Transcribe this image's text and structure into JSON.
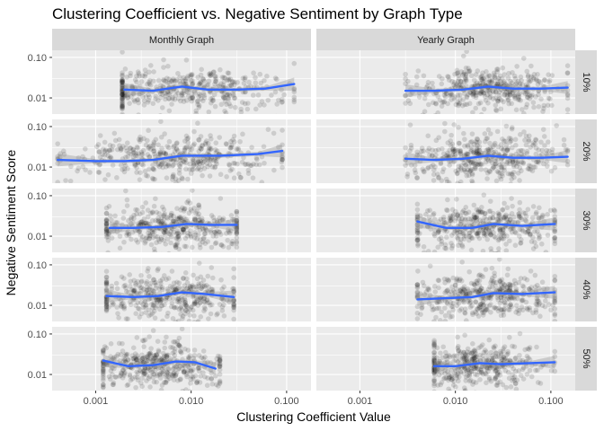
{
  "chart_data": {
    "type": "scatter",
    "title": "Clustering Coefficient vs. Negative Sentiment by Graph Type",
    "xlabel": "Clustering Coefficient Value",
    "ylabel": "Negative Sentiment Score",
    "x_scale": "log10",
    "y_scale": "log10",
    "xlim": [
      0.00035,
      0.18
    ],
    "ylim": [
      0.004,
      0.15
    ],
    "x_ticks": [
      0.001,
      0.01,
      0.1
    ],
    "x_tick_labels": [
      "0.001",
      "0.010",
      "0.100"
    ],
    "y_ticks": [
      0.01,
      0.1
    ],
    "y_tick_labels": [
      "0.01",
      "0.10"
    ],
    "grid": true,
    "columns": [
      "Monthly Graph",
      "Yearly Graph"
    ],
    "rows": [
      "10%",
      "20%",
      "30%",
      "40%",
      "50%"
    ],
    "colors": {
      "panel_bg": "#ebebeb",
      "grid": "#ffffff",
      "strip_bg": "#d9d9d9",
      "points": "#000000",
      "smooth": "#3366ff",
      "ribbon": "#999999"
    },
    "panels": [
      {
        "column": "Monthly Graph",
        "row": "10%",
        "cloud": {
          "x_center": 0.0085,
          "x_spread": 0.55,
          "x_min": 0.0019,
          "x_max": 0.12,
          "y_center": 0.016,
          "y_spread": 0.28
        },
        "smooth": {
          "x": [
            0.002,
            0.004,
            0.008,
            0.015,
            0.03,
            0.06,
            0.12
          ],
          "y": [
            0.016,
            0.015,
            0.019,
            0.016,
            0.016,
            0.017,
            0.022
          ]
        }
      },
      {
        "column": "Yearly Graph",
        "row": "10%",
        "cloud": {
          "x_center": 0.022,
          "x_spread": 0.4,
          "x_min": 0.003,
          "x_max": 0.15,
          "y_center": 0.017,
          "y_spread": 0.28
        },
        "smooth": {
          "x": [
            0.003,
            0.006,
            0.012,
            0.022,
            0.04,
            0.08,
            0.15
          ],
          "y": [
            0.015,
            0.015,
            0.016,
            0.019,
            0.017,
            0.017,
            0.018
          ]
        }
      },
      {
        "column": "Monthly Graph",
        "row": "20%",
        "cloud": {
          "x_center": 0.0075,
          "x_spread": 0.55,
          "x_min": 0.0004,
          "x_max": 0.09,
          "y_center": 0.017,
          "y_spread": 0.3
        },
        "smooth": {
          "x": [
            0.0004,
            0.001,
            0.002,
            0.004,
            0.008,
            0.02,
            0.05,
            0.09
          ],
          "y": [
            0.015,
            0.014,
            0.014,
            0.015,
            0.019,
            0.019,
            0.021,
            0.025
          ]
        }
      },
      {
        "column": "Yearly Graph",
        "row": "20%",
        "cloud": {
          "x_center": 0.022,
          "x_spread": 0.4,
          "x_min": 0.003,
          "x_max": 0.15,
          "y_center": 0.018,
          "y_spread": 0.3
        },
        "smooth": {
          "x": [
            0.003,
            0.006,
            0.012,
            0.022,
            0.04,
            0.08,
            0.15
          ],
          "y": [
            0.016,
            0.015,
            0.016,
            0.019,
            0.017,
            0.017,
            0.018
          ]
        }
      },
      {
        "column": "Monthly Graph",
        "row": "30%",
        "cloud": {
          "x_center": 0.006,
          "x_spread": 0.4,
          "x_min": 0.0013,
          "x_max": 0.03,
          "y_center": 0.017,
          "y_spread": 0.28
        },
        "smooth": {
          "x": [
            0.0014,
            0.0025,
            0.005,
            0.009,
            0.016,
            0.03
          ],
          "y": [
            0.016,
            0.016,
            0.017,
            0.02,
            0.019,
            0.019
          ]
        }
      },
      {
        "column": "Yearly Graph",
        "row": "30%",
        "cloud": {
          "x_center": 0.02,
          "x_spread": 0.4,
          "x_min": 0.004,
          "x_max": 0.11,
          "y_center": 0.017,
          "y_spread": 0.28
        },
        "smooth": {
          "x": [
            0.004,
            0.008,
            0.015,
            0.025,
            0.05,
            0.11
          ],
          "y": [
            0.023,
            0.016,
            0.016,
            0.02,
            0.018,
            0.02
          ]
        }
      },
      {
        "column": "Monthly Graph",
        "row": "40%",
        "cloud": {
          "x_center": 0.0055,
          "x_spread": 0.4,
          "x_min": 0.0013,
          "x_max": 0.028,
          "y_center": 0.017,
          "y_spread": 0.28
        },
        "smooth": {
          "x": [
            0.0013,
            0.0025,
            0.0045,
            0.008,
            0.014,
            0.028
          ],
          "y": [
            0.017,
            0.016,
            0.017,
            0.021,
            0.019,
            0.016
          ]
        }
      },
      {
        "column": "Yearly Graph",
        "row": "40%",
        "cloud": {
          "x_center": 0.02,
          "x_spread": 0.4,
          "x_min": 0.004,
          "x_max": 0.11,
          "y_center": 0.017,
          "y_spread": 0.28
        },
        "smooth": {
          "x": [
            0.004,
            0.008,
            0.015,
            0.025,
            0.05,
            0.11
          ],
          "y": [
            0.014,
            0.015,
            0.016,
            0.02,
            0.019,
            0.021
          ]
        }
      },
      {
        "column": "Monthly Graph",
        "row": "50%",
        "cloud": {
          "x_center": 0.0045,
          "x_spread": 0.35,
          "x_min": 0.0012,
          "x_max": 0.02,
          "y_center": 0.017,
          "y_spread": 0.28
        },
        "smooth": {
          "x": [
            0.0012,
            0.0022,
            0.004,
            0.007,
            0.011,
            0.018
          ],
          "y": [
            0.022,
            0.016,
            0.017,
            0.021,
            0.02,
            0.014
          ]
        }
      },
      {
        "column": "Yearly Graph",
        "row": "50%",
        "cloud": {
          "x_center": 0.018,
          "x_spread": 0.35,
          "x_min": 0.006,
          "x_max": 0.11,
          "y_center": 0.017,
          "y_spread": 0.28
        },
        "smooth": {
          "x": [
            0.006,
            0.01,
            0.018,
            0.03,
            0.06,
            0.11
          ],
          "y": [
            0.016,
            0.016,
            0.019,
            0.018,
            0.019,
            0.02
          ]
        }
      }
    ]
  }
}
